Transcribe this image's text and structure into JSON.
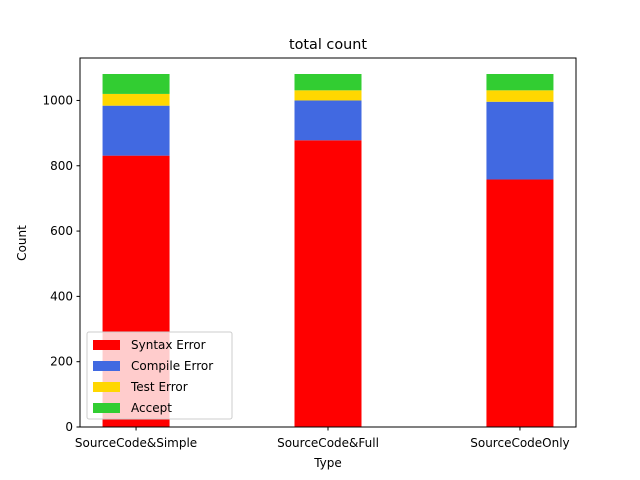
{
  "chart_data": {
    "type": "bar",
    "stacked": true,
    "title": "total count",
    "xlabel": "Type",
    "ylabel": "Count",
    "categories": [
      "SourceCode&Simple",
      "SourceCode&Full",
      "SourceCodeOnly"
    ],
    "ylim": [
      0,
      1130
    ],
    "yticks": [
      0,
      200,
      400,
      600,
      800,
      1000
    ],
    "ytick_labels": [
      "0",
      "200",
      "400",
      "600",
      "800",
      "1000"
    ],
    "series": [
      {
        "name": "Syntax Error",
        "color": "#ff0000",
        "values": [
          831,
          878,
          758
        ]
      },
      {
        "name": "Compile Error",
        "color": "#4169e1",
        "values": [
          153,
          122,
          238
        ]
      },
      {
        "name": "Test Error",
        "color": "#ffd700",
        "values": [
          36,
          31,
          35
        ]
      },
      {
        "name": "Accept",
        "color": "#32cd32",
        "values": [
          61,
          50,
          50
        ]
      }
    ],
    "legend": {
      "placement": "lower-left"
    },
    "grid": false
  }
}
